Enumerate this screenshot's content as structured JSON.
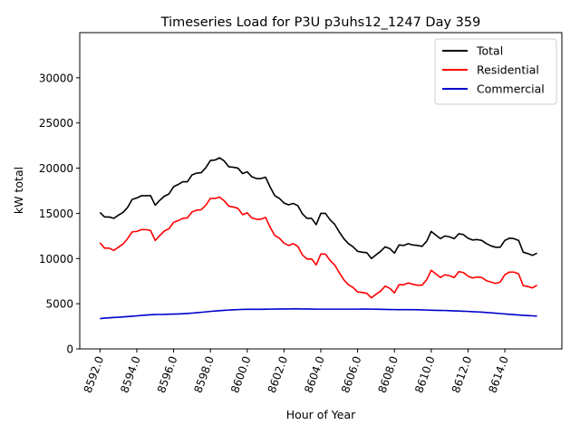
{
  "chart_data": {
    "type": "line",
    "title": "Timeseries Load for P3U p3uhs12_1247  Day 359",
    "xlabel": "Hour of Year",
    "ylabel": "kW total",
    "xlim": [
      8590.9,
      8617.1
    ],
    "ylim": [
      0,
      35000
    ],
    "xticks": [
      8592,
      8594,
      8596,
      8598,
      8600,
      8602,
      8604,
      8606,
      8608,
      8610,
      8612,
      8614
    ],
    "xtick_labels": [
      "8592.0",
      "8594.0",
      "8596.0",
      "8598.0",
      "8600.0",
      "8602.0",
      "8604.0",
      "8606.0",
      "8608.0",
      "8610.0",
      "8612.0",
      "8614.0"
    ],
    "yticks": [
      0,
      5000,
      10000,
      15000,
      20000,
      25000,
      30000
    ],
    "ytick_labels": [
      "0",
      "5000",
      "10000",
      "15000",
      "20000",
      "25000",
      "30000"
    ],
    "legend_position": "top-right",
    "grid": false,
    "x_start": 8592,
    "x_step": 0.25,
    "series": [
      {
        "name": "Total",
        "color": "#000000",
        "values": [
          15100,
          14600,
          14600,
          14450,
          14800,
          15100,
          15650,
          16550,
          16700,
          16950,
          16950,
          16950,
          15900,
          16450,
          16900,
          17150,
          17950,
          18200,
          18500,
          18500,
          19250,
          19450,
          19500,
          20050,
          20850,
          20900,
          21150,
          20800,
          20150,
          20100,
          20000,
          19400,
          19600,
          19050,
          18850,
          18850,
          19000,
          17900,
          16950,
          16650,
          16150,
          15950,
          16100,
          15850,
          14950,
          14450,
          14450,
          13750,
          15000,
          15000,
          14300,
          13800,
          12950,
          12200,
          11650,
          11300,
          10800,
          10700,
          10650,
          10000,
          10400,
          10800,
          11300,
          11100,
          10600,
          11500,
          11450,
          11650,
          11500,
          11450,
          11350,
          11900,
          13000,
          12600,
          12200,
          12500,
          12400,
          12200,
          12750,
          12650,
          12250,
          12050,
          12100,
          12000,
          11650,
          11400,
          11250,
          11250,
          12000,
          12250,
          12200,
          12000,
          10700,
          10550,
          10350,
          10600
        ]
      },
      {
        "name": "Residential",
        "color": "#ff0000",
        "values": [
          11750,
          11150,
          11150,
          10900,
          11250,
          11600,
          12200,
          12950,
          13000,
          13200,
          13200,
          13100,
          12000,
          12550,
          13050,
          13300,
          14000,
          14200,
          14450,
          14500,
          15150,
          15350,
          15400,
          15900,
          16650,
          16650,
          16800,
          16400,
          15800,
          15700,
          15550,
          14850,
          15050,
          14500,
          14350,
          14350,
          14550,
          13450,
          12550,
          12250,
          11700,
          11450,
          11650,
          11350,
          10400,
          9950,
          9950,
          9300,
          10500,
          10500,
          9800,
          9300,
          8450,
          7650,
          7100,
          6800,
          6300,
          6250,
          6150,
          5650,
          6050,
          6400,
          6950,
          6700,
          6200,
          7100,
          7100,
          7300,
          7150,
          7050,
          7050,
          7650,
          8700,
          8300,
          7900,
          8200,
          8100,
          7900,
          8550,
          8450,
          8050,
          7850,
          7950,
          7900,
          7550,
          7400,
          7250,
          7400,
          8200,
          8500,
          8500,
          8300,
          7000,
          6900,
          6750,
          7050
        ]
      },
      {
        "name": "Commercial",
        "color": "#0000cc",
        "values": [
          3350,
          3400,
          3440,
          3480,
          3500,
          3540,
          3580,
          3620,
          3660,
          3700,
          3740,
          3780,
          3800,
          3810,
          3820,
          3840,
          3850,
          3870,
          3890,
          3920,
          3960,
          4000,
          4050,
          4100,
          4150,
          4190,
          4230,
          4270,
          4300,
          4330,
          4350,
          4370,
          4380,
          4380,
          4380,
          4380,
          4390,
          4400,
          4410,
          4420,
          4420,
          4420,
          4430,
          4430,
          4420,
          4420,
          4410,
          4400,
          4400,
          4400,
          4400,
          4400,
          4400,
          4400,
          4400,
          4400,
          4400,
          4410,
          4410,
          4400,
          4390,
          4380,
          4370,
          4360,
          4350,
          4340,
          4340,
          4340,
          4340,
          4330,
          4320,
          4300,
          4280,
          4270,
          4260,
          4250,
          4230,
          4210,
          4190,
          4170,
          4150,
          4120,
          4100,
          4070,
          4030,
          3990,
          3950,
          3910,
          3870,
          3830,
          3790,
          3750,
          3720,
          3690,
          3660,
          3630
        ]
      }
    ]
  }
}
